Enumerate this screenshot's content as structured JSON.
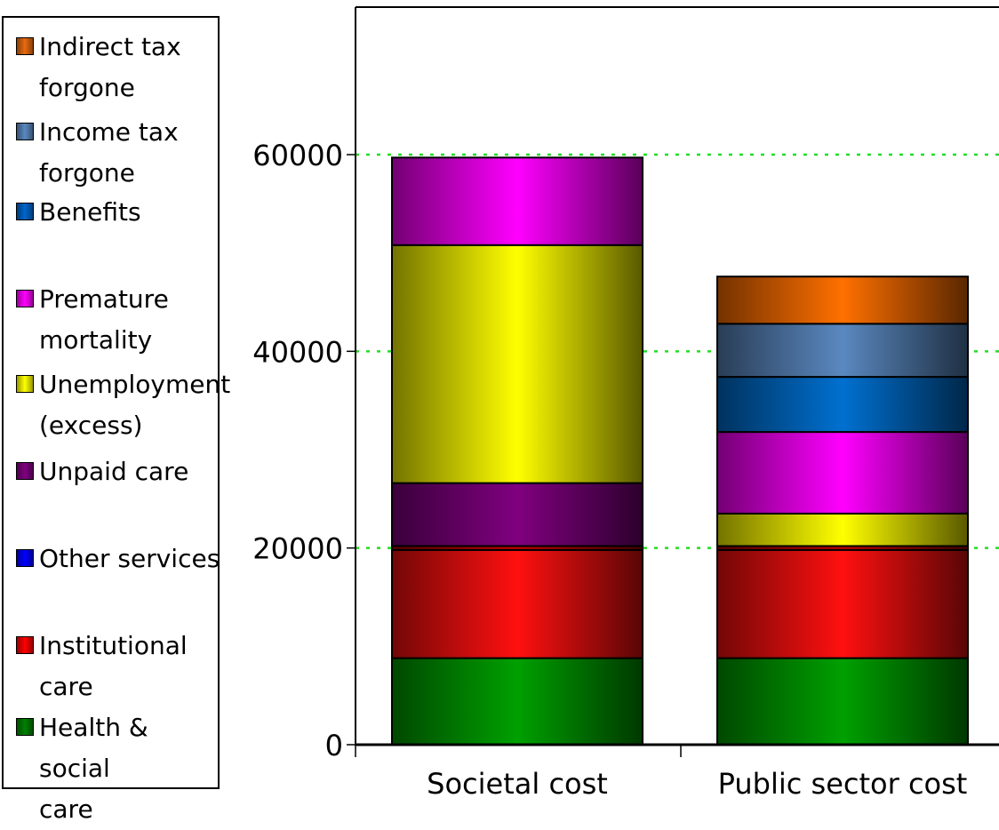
{
  "chart_data": {
    "type": "bar",
    "stacked": true,
    "categories": [
      "Societal cost",
      "Public sector cost"
    ],
    "ylim": [
      0,
      75000
    ],
    "yticks": [
      0,
      20000,
      40000,
      60000
    ],
    "ytick_labels": [
      "0",
      "20000",
      "40000",
      "60000"
    ],
    "grid": "dotted horizontal lines",
    "legend_position": "left",
    "title": "",
    "xlabel": "",
    "ylabel": "",
    "series": [
      {
        "name": "Health & social care",
        "color": "#00a000",
        "values": [
          8800,
          8800
        ]
      },
      {
        "name": "Institutional care",
        "color": "#ff1010",
        "values": [
          11000,
          11000
        ]
      },
      {
        "name": "Other services",
        "color": "#c00000",
        "values": [
          400,
          400
        ]
      },
      {
        "name": "Unpaid care",
        "color": "#800080",
        "values": [
          6400,
          0
        ]
      },
      {
        "name": "Unemployment (excess)",
        "color": "#ffff00",
        "values": [
          24200,
          3300
        ]
      },
      {
        "name": "Premature mortality",
        "color": "#ff00ff",
        "values": [
          8900,
          8300
        ]
      },
      {
        "name": "Benefits",
        "color": "#0070d0",
        "values": [
          0,
          5600
        ]
      },
      {
        "name": "Income tax forgone",
        "color": "#5a88c0",
        "values": [
          0,
          5400
        ]
      },
      {
        "name": "Indirect tax forgone",
        "color": "#ff7000",
        "values": [
          0,
          4800
        ]
      }
    ]
  },
  "legend": [
    {
      "label": "Indirect tax\nforgone",
      "color": "#e86a10"
    },
    {
      "label": "Income tax\nforgone",
      "color": "#5a88c0"
    },
    {
      "label": "Benefits",
      "color": "#0066cc"
    },
    {
      "label": "Premature\nmortality",
      "color": "#ff00ff"
    },
    {
      "label": "Unemployment\n(excess)",
      "color": "#ffff00"
    },
    {
      "label": "Unpaid care",
      "color": "#800080"
    },
    {
      "label": "Other services",
      "color": "#0000ff"
    },
    {
      "label": "Institutional\ncare",
      "color": "#ff0000"
    },
    {
      "label": "Health & social\ncare",
      "color": "#008000"
    }
  ]
}
